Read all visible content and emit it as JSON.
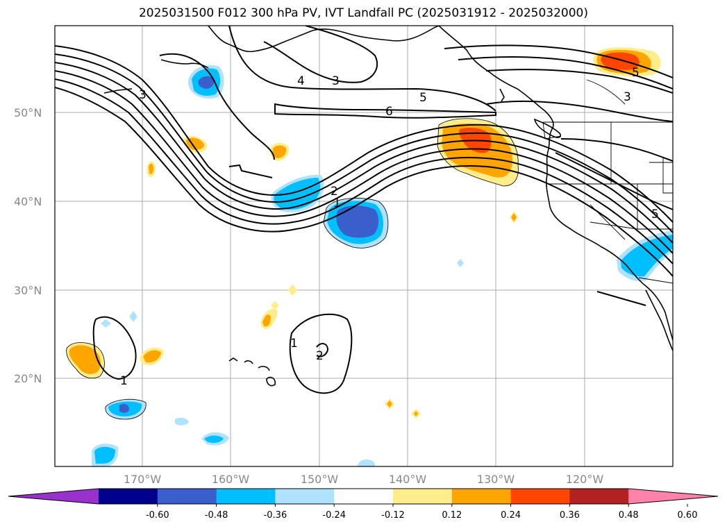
{
  "title": "2025031500 F012 300 hPa PV, IVT Landfall PC (2025031912 - 2025032000)",
  "map": {
    "lat_labels": [
      "50°N",
      "40°N",
      "30°N",
      "20°N"
    ],
    "lon_labels": [
      "170°W",
      "160°W",
      "150°W",
      "140°W",
      "130°W",
      "120°W"
    ],
    "contour_labels": [
      "3",
      "4",
      "3",
      "5",
      "6",
      "5",
      "3",
      "2",
      "1",
      "1",
      "2",
      "1",
      "5"
    ]
  },
  "colorbar": {
    "ticks": [
      "-0.60",
      "-0.48",
      "-0.36",
      "-0.24",
      "-0.12",
      "0.12",
      "0.24",
      "0.36",
      "0.48",
      "0.60"
    ],
    "colors": [
      "#9932cc",
      "#00008b",
      "#3a5fcd",
      "#00bfff",
      "#b0e2ff",
      "#ffffff",
      "#ffec8b",
      "#ffa500",
      "#ff4500",
      "#b22222",
      "#ff82ab"
    ]
  }
}
